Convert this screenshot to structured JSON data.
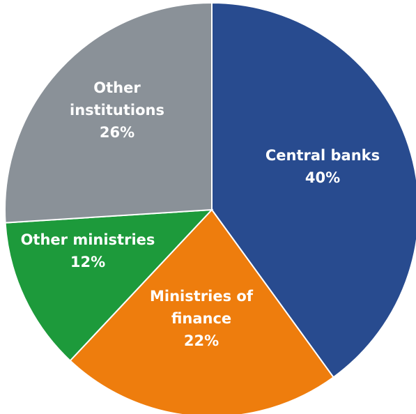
{
  "chart_data": {
    "type": "pie",
    "slices": [
      {
        "label_lines": [
          "Central banks"
        ],
        "percent_text": "40%",
        "value": 40,
        "color": "#284b8f"
      },
      {
        "label_lines": [
          "Ministries of",
          "finance"
        ],
        "percent_text": "22%",
        "value": 22,
        "color": "#ee7d0d"
      },
      {
        "label_lines": [
          "Other ministries"
        ],
        "percent_text": "12%",
        "value": 12,
        "color": "#1d9a3b"
      },
      {
        "label_lines": [
          "Other",
          "institutions"
        ],
        "percent_text": "26%",
        "value": 26,
        "color": "#8a9198"
      }
    ]
  }
}
